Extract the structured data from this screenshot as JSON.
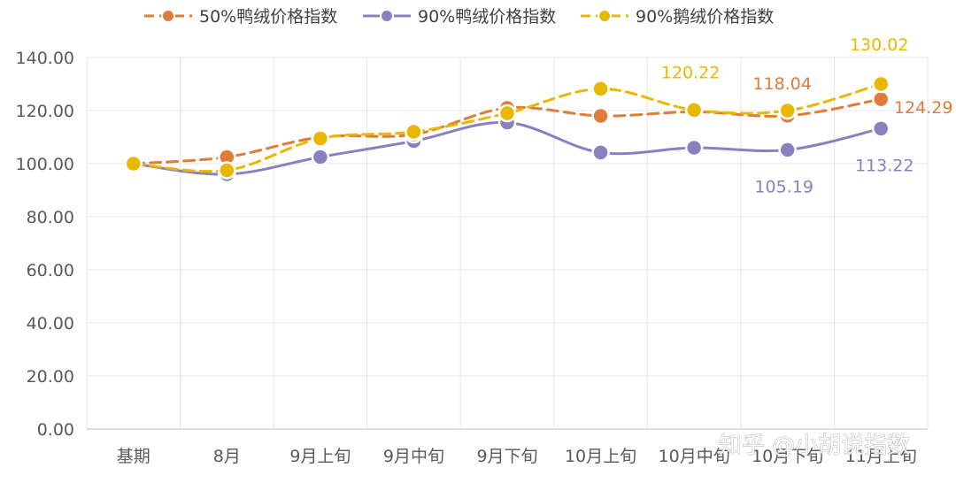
{
  "chart_data": {
    "type": "line",
    "title": "",
    "xlabel": "",
    "ylabel": "",
    "ylim": [
      0,
      140
    ],
    "ytick_labels": [
      "0.00",
      "20.00",
      "40.00",
      "60.00",
      "80.00",
      "100.00",
      "120.00",
      "140.00"
    ],
    "grid": true,
    "legend_position": "top",
    "categories": [
      "基期",
      "8月",
      "9月上旬",
      "9月中旬",
      "9月下旬",
      "10月上旬",
      "10月中旬",
      "10月下旬",
      "11月上旬"
    ],
    "series": [
      {
        "name": "50%鸭绒价格指数",
        "color": "#E07B39",
        "style": "dashed",
        "values": [
          100,
          102.5,
          110,
          111,
          121,
          118,
          119.5,
          118.04,
          124.29
        ]
      },
      {
        "name": "90%鸭绒价格指数",
        "color": "#8B7FC0",
        "style": "solid",
        "values": [
          100,
          96,
          102.5,
          108.5,
          115.5,
          104.2,
          106,
          105.19,
          113.22
        ]
      },
      {
        "name": "90%鹅绒价格指数",
        "color": "#E8B800",
        "style": "dashed",
        "values": [
          100,
          97.5,
          109.5,
          112,
          119,
          128.2,
          120.22,
          120,
          130.02
        ]
      }
    ],
    "annotations": [
      {
        "series": 2,
        "index": 6,
        "text": "120.22",
        "color": "#E8B800"
      },
      {
        "series": 0,
        "index": 7,
        "text": "118.04",
        "color": "#E07B39"
      },
      {
        "series": 2,
        "index": 8,
        "text": "130.02",
        "color": "#E8B800"
      },
      {
        "series": 0,
        "index": 8,
        "text": "124.29",
        "color": "#E07B39"
      },
      {
        "series": 1,
        "index": 7,
        "text": "105.19",
        "color": "#8B7FC0"
      },
      {
        "series": 1,
        "index": 8,
        "text": "113.22",
        "color": "#8B7FC0"
      }
    ]
  },
  "watermark": "知乎 @小胡说指数"
}
